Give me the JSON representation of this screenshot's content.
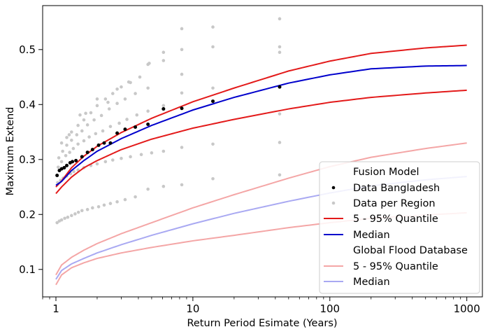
{
  "chart_data": {
    "type": "line",
    "title": "",
    "xlabel": "Return Period Esimate (Years)",
    "ylabel": "Maximum Extend",
    "xscale": "log",
    "xlim": [
      0.8,
      1300
    ],
    "ylim": [
      0.05,
      0.58
    ],
    "xticks": [
      1,
      10,
      100,
      1000
    ],
    "xtick_labels": [
      "1",
      "10",
      "100",
      "1000"
    ],
    "yticks": [
      0.1,
      0.2,
      0.3,
      0.4,
      0.5
    ],
    "ytick_labels": [
      "0.1",
      "0.2",
      "0.3",
      "0.4",
      "0.5"
    ],
    "grid": false,
    "legend_position": "lower-right",
    "legend": {
      "fusion_header": "Fusion Model",
      "data_bangladesh": "Data Bangladesh",
      "data_region": "Data per Region",
      "fusion_quantile": "5 - 95% Quantile",
      "fusion_median": "Median",
      "gfd_header": "Global Flood Database",
      "gfd_quantile": "5 - 95% Quantile",
      "gfd_median": "Median"
    },
    "colors": {
      "fusion_quantile": "#e31a1a",
      "fusion_median": "#0000cc",
      "gfd_quantile": "#f4a6a6",
      "gfd_median": "#a9a9f2",
      "bangladesh_points": "#000000",
      "region_points": "#c8c8c8"
    },
    "curves": {
      "fusion_q95": [
        [
          1,
          0.25
        ],
        [
          1.1,
          0.261
        ],
        [
          1.3,
          0.285
        ],
        [
          1.6,
          0.306
        ],
        [
          2,
          0.324
        ],
        [
          3,
          0.349
        ],
        [
          5,
          0.375
        ],
        [
          10,
          0.405
        ],
        [
          20,
          0.43
        ],
        [
          50,
          0.461
        ],
        [
          100,
          0.479
        ],
        [
          200,
          0.493
        ],
        [
          500,
          0.503
        ],
        [
          1000,
          0.508
        ]
      ],
      "fusion_median": [
        [
          1,
          0.253
        ],
        [
          1.1,
          0.26
        ],
        [
          1.3,
          0.28
        ],
        [
          1.6,
          0.298
        ],
        [
          2,
          0.315
        ],
        [
          3,
          0.338
        ],
        [
          5,
          0.362
        ],
        [
          10,
          0.39
        ],
        [
          20,
          0.413
        ],
        [
          50,
          0.439
        ],
        [
          100,
          0.454
        ],
        [
          200,
          0.465
        ],
        [
          500,
          0.47
        ],
        [
          1000,
          0.471
        ]
      ],
      "fusion_q05": [
        [
          1,
          0.238
        ],
        [
          1.1,
          0.25
        ],
        [
          1.3,
          0.268
        ],
        [
          1.6,
          0.285
        ],
        [
          2,
          0.298
        ],
        [
          3,
          0.318
        ],
        [
          5,
          0.337
        ],
        [
          10,
          0.357
        ],
        [
          20,
          0.373
        ],
        [
          50,
          0.392
        ],
        [
          100,
          0.404
        ],
        [
          200,
          0.413
        ],
        [
          500,
          0.421
        ],
        [
          1000,
          0.426
        ]
      ],
      "gfd_q95": [
        [
          1,
          0.09
        ],
        [
          1.1,
          0.108
        ],
        [
          1.3,
          0.122
        ],
        [
          1.6,
          0.135
        ],
        [
          2,
          0.147
        ],
        [
          3,
          0.165
        ],
        [
          5,
          0.185
        ],
        [
          10,
          0.212
        ],
        [
          20,
          0.236
        ],
        [
          50,
          0.266
        ],
        [
          100,
          0.287
        ],
        [
          200,
          0.304
        ],
        [
          500,
          0.32
        ],
        [
          1000,
          0.33
        ]
      ],
      "gfd_median": [
        [
          1,
          0.082
        ],
        [
          1.1,
          0.098
        ],
        [
          1.3,
          0.11
        ],
        [
          1.6,
          0.12
        ],
        [
          2,
          0.13
        ],
        [
          3,
          0.145
        ],
        [
          5,
          0.162
        ],
        [
          10,
          0.183
        ],
        [
          20,
          0.202
        ],
        [
          50,
          0.224
        ],
        [
          100,
          0.239
        ],
        [
          200,
          0.252
        ],
        [
          500,
          0.263
        ],
        [
          1000,
          0.269
        ]
      ],
      "gfd_q05": [
        [
          1,
          0.072
        ],
        [
          1.1,
          0.09
        ],
        [
          1.3,
          0.103
        ],
        [
          1.6,
          0.112
        ],
        [
          2,
          0.12
        ],
        [
          3,
          0.13
        ],
        [
          5,
          0.14
        ],
        [
          10,
          0.152
        ],
        [
          20,
          0.162
        ],
        [
          50,
          0.176
        ],
        [
          100,
          0.185
        ],
        [
          200,
          0.193
        ],
        [
          500,
          0.199
        ],
        [
          1000,
          0.203
        ]
      ]
    },
    "data_bangladesh": [
      [
        1.02,
        0.271
      ],
      [
        1.06,
        0.28
      ],
      [
        1.1,
        0.283
      ],
      [
        1.15,
        0.285
      ],
      [
        1.2,
        0.289
      ],
      [
        1.27,
        0.294
      ],
      [
        1.32,
        0.296
      ],
      [
        1.4,
        0.298
      ],
      [
        1.55,
        0.305
      ],
      [
        1.7,
        0.313
      ],
      [
        1.85,
        0.318
      ],
      [
        2.05,
        0.326
      ],
      [
        2.25,
        0.33
      ],
      [
        2.5,
        0.33
      ],
      [
        2.8,
        0.348
      ],
      [
        3.2,
        0.355
      ],
      [
        3.8,
        0.359
      ],
      [
        4.7,
        0.364
      ],
      [
        6.1,
        0.392
      ],
      [
        8.3,
        0.393
      ],
      [
        14,
        0.406
      ],
      [
        43,
        0.432
      ]
    ],
    "data_region": [
      [
        1.02,
        0.185
      ],
      [
        1.06,
        0.188
      ],
      [
        1.1,
        0.19
      ],
      [
        1.16,
        0.193
      ],
      [
        1.22,
        0.195
      ],
      [
        1.3,
        0.198
      ],
      [
        1.38,
        0.201
      ],
      [
        1.46,
        0.204
      ],
      [
        1.55,
        0.207
      ],
      [
        1.7,
        0.209
      ],
      [
        1.85,
        0.212
      ],
      [
        2.05,
        0.214
      ],
      [
        2.25,
        0.217
      ],
      [
        2.5,
        0.22
      ],
      [
        2.8,
        0.223
      ],
      [
        3.2,
        0.227
      ],
      [
        3.8,
        0.232
      ],
      [
        4.7,
        0.246
      ],
      [
        6.1,
        0.251
      ],
      [
        8.3,
        0.254
      ],
      [
        14,
        0.265
      ],
      [
        43,
        0.272
      ],
      [
        1.03,
        0.258
      ],
      [
        1.08,
        0.262
      ],
      [
        1.13,
        0.266
      ],
      [
        1.2,
        0.27
      ],
      [
        1.28,
        0.274
      ],
      [
        1.35,
        0.278
      ],
      [
        1.45,
        0.281
      ],
      [
        1.6,
        0.285
      ],
      [
        1.8,
        0.289
      ],
      [
        2.0,
        0.292
      ],
      [
        2.3,
        0.296
      ],
      [
        2.6,
        0.299
      ],
      [
        3.0,
        0.302
      ],
      [
        3.5,
        0.305
      ],
      [
        4.2,
        0.309
      ],
      [
        5.0,
        0.312
      ],
      [
        6.1,
        0.315
      ],
      [
        8.3,
        0.322
      ],
      [
        14,
        0.328
      ],
      [
        43,
        0.331
      ],
      [
        1.04,
        0.286
      ],
      [
        1.1,
        0.296
      ],
      [
        1.18,
        0.307
      ],
      [
        1.26,
        0.313
      ],
      [
        1.34,
        0.32
      ],
      [
        1.45,
        0.328
      ],
      [
        1.6,
        0.334
      ],
      [
        1.75,
        0.341
      ],
      [
        1.95,
        0.347
      ],
      [
        2.2,
        0.352
      ],
      [
        2.5,
        0.36
      ],
      [
        2.9,
        0.366
      ],
      [
        3.3,
        0.373
      ],
      [
        3.9,
        0.381
      ],
      [
        4.7,
        0.388
      ],
      [
        6.1,
        0.398
      ],
      [
        8.3,
        0.421
      ],
      [
        14,
        0.43
      ],
      [
        43,
        0.433
      ],
      [
        1.05,
        0.303
      ],
      [
        1.12,
        0.315
      ],
      [
        1.2,
        0.326
      ],
      [
        1.3,
        0.335
      ],
      [
        1.42,
        0.345
      ],
      [
        1.55,
        0.352
      ],
      [
        1.7,
        0.363
      ],
      [
        1.9,
        0.372
      ],
      [
        2.15,
        0.38
      ],
      [
        2.45,
        0.392
      ],
      [
        2.8,
        0.402
      ],
      [
        3.2,
        0.41
      ],
      [
        3.8,
        0.42
      ],
      [
        4.7,
        0.43
      ],
      [
        6.1,
        0.48
      ],
      [
        8.3,
        0.5
      ],
      [
        14,
        0.505
      ],
      [
        43,
        0.505
      ],
      [
        1.1,
        0.33
      ],
      [
        1.2,
        0.34
      ],
      [
        1.3,
        0.35
      ],
      [
        1.45,
        0.362
      ],
      [
        1.6,
        0.372
      ],
      [
        1.8,
        0.385
      ],
      [
        2.0,
        0.398
      ],
      [
        2.3,
        0.41
      ],
      [
        2.6,
        0.42
      ],
      [
        3.0,
        0.432
      ],
      [
        3.5,
        0.44
      ],
      [
        4.1,
        0.45
      ],
      [
        4.8,
        0.475
      ],
      [
        6.1,
        0.495
      ],
      [
        8.3,
        0.538
      ],
      [
        14,
        0.541
      ],
      [
        43,
        0.556
      ],
      [
        1.25,
        0.345
      ],
      [
        1.5,
        0.381
      ],
      [
        1.65,
        0.384
      ],
      [
        2.0,
        0.41
      ],
      [
        2.4,
        0.404
      ],
      [
        2.8,
        0.428
      ],
      [
        3.4,
        0.441
      ],
      [
        4.7,
        0.473
      ],
      [
        8.3,
        0.455
      ],
      [
        43,
        0.495
      ],
      [
        43,
        0.383
      ]
    ]
  }
}
